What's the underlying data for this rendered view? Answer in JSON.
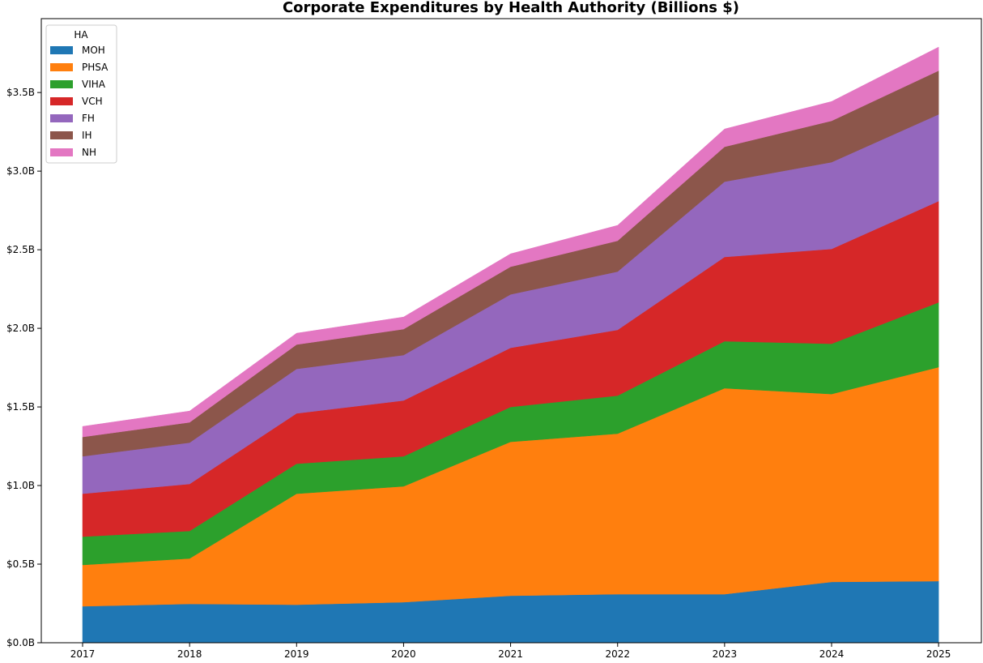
{
  "chart_data": {
    "type": "area",
    "stacked": true,
    "title": "Corporate Expenditures by Health Authority (Billions $)",
    "xlabel": "",
    "ylabel": "",
    "x": [
      2017,
      2018,
      2019,
      2020,
      2021,
      2022,
      2023,
      2024,
      2025
    ],
    "xlim": [
      2016.614,
      2025.4
    ],
    "ylim": [
      0,
      3.97
    ],
    "yticks": [
      0,
      0.5,
      1.0,
      1.5,
      2.0,
      2.5,
      3.0,
      3.5
    ],
    "ytick_labels": [
      "$0.0B",
      "$0.5B",
      "$1.0B",
      "$1.5B",
      "$2.0B",
      "$2.5B",
      "$3.0B",
      "$3.5B"
    ],
    "xtick_labels": [
      "2017",
      "2018",
      "2019",
      "2020",
      "2021",
      "2022",
      "2023",
      "2024",
      "2025"
    ],
    "grid": false,
    "legend": {
      "title": "HA",
      "placement": "top-left"
    },
    "series": [
      {
        "name": "MOH",
        "color": "#1f77b4",
        "values": [
          0.232,
          0.247,
          0.242,
          0.258,
          0.299,
          0.309,
          0.309,
          0.387,
          0.392
        ]
      },
      {
        "name": "PHSA",
        "color": "#ff7f0e",
        "values": [
          0.263,
          0.289,
          0.706,
          0.737,
          0.979,
          1.021,
          1.31,
          1.195,
          1.361
        ]
      },
      {
        "name": "VIHA",
        "color": "#2ca02c",
        "values": [
          0.18,
          0.175,
          0.191,
          0.191,
          0.222,
          0.242,
          0.299,
          0.32,
          0.412
        ]
      },
      {
        "name": "VCH",
        "color": "#d62728",
        "values": [
          0.273,
          0.299,
          0.32,
          0.355,
          0.376,
          0.418,
          0.536,
          0.603,
          0.644
        ]
      },
      {
        "name": "FH",
        "color": "#9467bd",
        "values": [
          0.238,
          0.263,
          0.283,
          0.289,
          0.34,
          0.371,
          0.479,
          0.552,
          0.552
        ]
      },
      {
        "name": "IH",
        "color": "#8c564b",
        "values": [
          0.123,
          0.129,
          0.155,
          0.165,
          0.176,
          0.196,
          0.222,
          0.263,
          0.278
        ]
      },
      {
        "name": "NH",
        "color": "#e377c2",
        "values": [
          0.067,
          0.072,
          0.072,
          0.077,
          0.082,
          0.098,
          0.113,
          0.123,
          0.15
        ]
      }
    ]
  }
}
